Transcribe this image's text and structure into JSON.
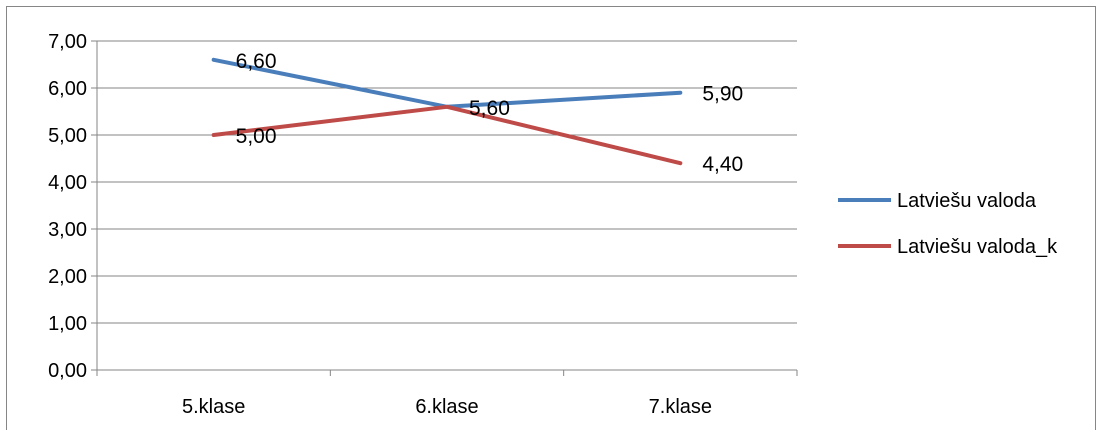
{
  "chart_data": {
    "type": "line",
    "categories": [
      "5.klase",
      "6.klase",
      "7.klase"
    ],
    "series": [
      {
        "name": "Latviešu valoda",
        "values": [
          6.6,
          5.6,
          5.9
        ],
        "labels": [
          "6,60",
          "5,60",
          "5,90"
        ],
        "color": "#4a7ebb"
      },
      {
        "name": "Latviešu valoda_k",
        "values": [
          5.0,
          5.6,
          4.4
        ],
        "labels": [
          "5,00",
          "",
          "4,40"
        ],
        "color": "#be4b48"
      }
    ],
    "y_ticks": [
      "0,00",
      "1,00",
      "2,00",
      "3,00",
      "4,00",
      "5,00",
      "6,00",
      "7,00"
    ],
    "ylim": [
      0,
      7
    ],
    "grid": true,
    "legend": "right"
  }
}
